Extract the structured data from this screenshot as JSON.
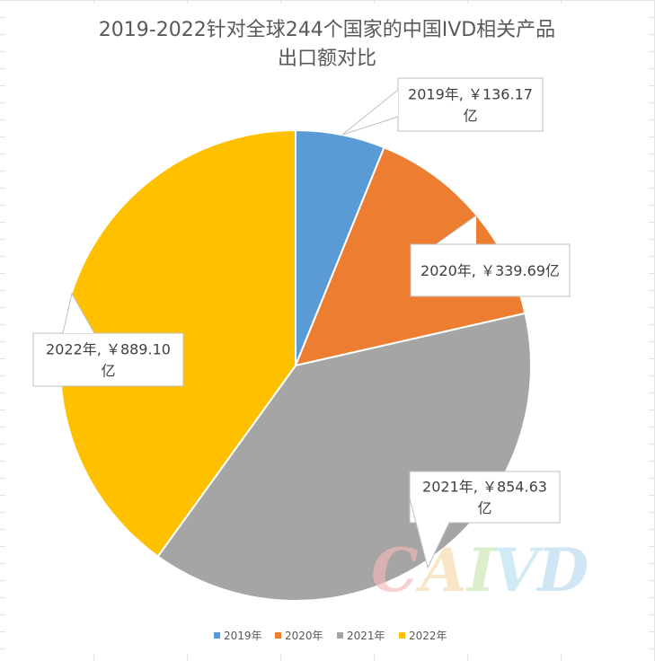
{
  "chart_data": {
    "type": "pie",
    "title_lines": [
      "2019-2022针对全球244个国家的中国IVD相关产品",
      "出口额对比"
    ],
    "categories": [
      "2019年",
      "2020年",
      "2021年",
      "2022年"
    ],
    "values": [
      136.17,
      339.69,
      854.63,
      889.1
    ],
    "colors": [
      "#5B9BD5",
      "#ED7D31",
      "#A5A5A5",
      "#FFC000"
    ],
    "data_labels": [
      [
        "2019年, ￥136.17",
        "亿"
      ],
      [
        "2020年, ￥339.69亿"
      ],
      [
        "2021年, ￥854.63",
        "亿"
      ],
      [
        "2022年, ￥889.10",
        "亿"
      ]
    ],
    "legend_position": "bottom",
    "watermark": "CAIVD"
  }
}
